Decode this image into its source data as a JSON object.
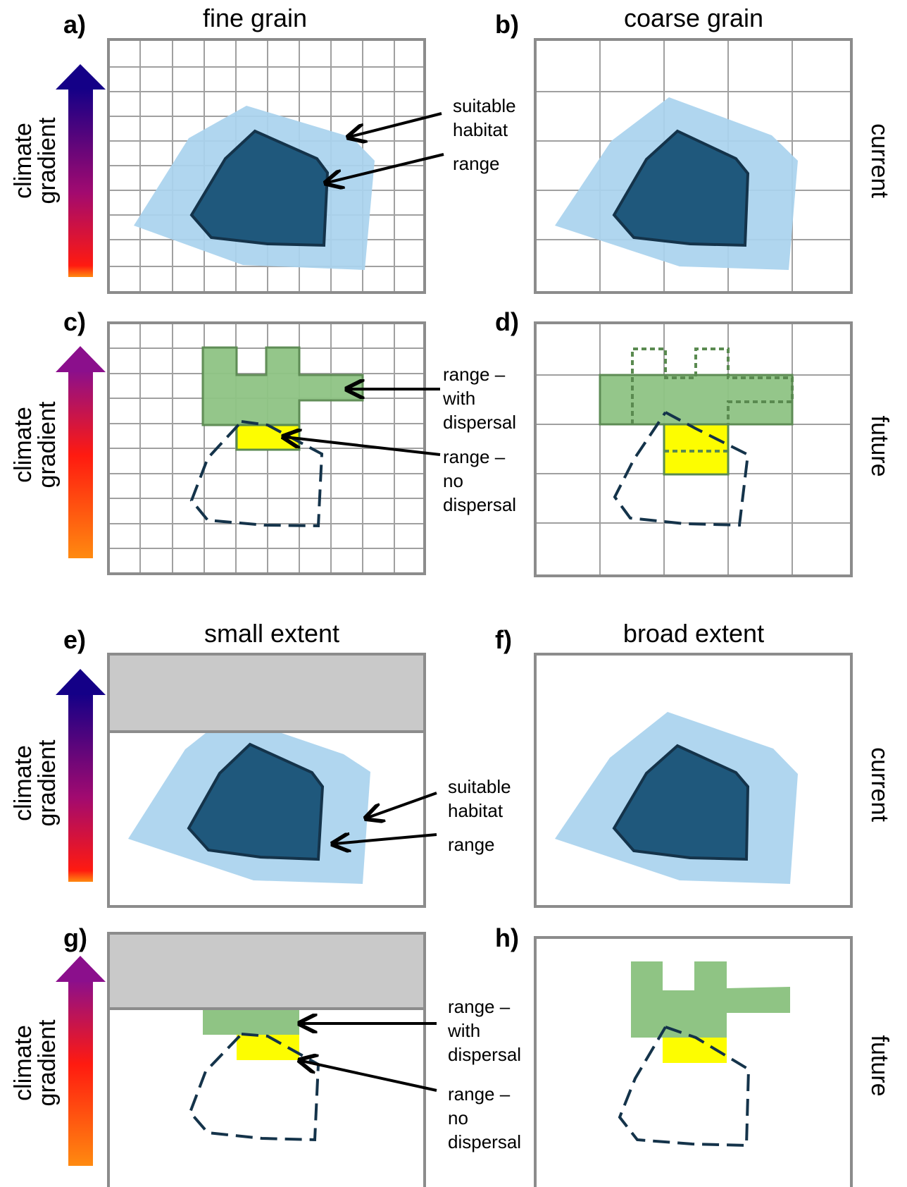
{
  "panels": {
    "a": "a)",
    "b": "b)",
    "c": "c)",
    "d": "d)",
    "e": "e)",
    "f": "f)",
    "g": "g)",
    "h": "h)"
  },
  "column_titles": {
    "fine_grain": "fine grain",
    "coarse_grain": "coarse grain",
    "small_extent": "small extent",
    "broad_extent": "broad extent"
  },
  "row_labels": {
    "current": "current",
    "future": "future"
  },
  "axis": {
    "line1": "climate",
    "line2": "gradient"
  },
  "annotations": {
    "suitable_habitat": [
      "suitable",
      "habitat"
    ],
    "range": "range",
    "range_with_dispersal": [
      "range –",
      "with",
      "dispersal"
    ],
    "range_no_dispersal": [
      "range –",
      "no",
      "dispersal"
    ]
  },
  "colors": {
    "suitable_habitat": "#a9d3ee",
    "range": "#1f587c",
    "range_outline": "#14334a",
    "range_with_dispersal": "#8fc484",
    "range_with_dispersal_outline": "#5a8a50",
    "range_no_dispersal": "#fdfd00",
    "excluded_area": "#c9c9c9",
    "grid": "#a0a0a0",
    "panel_frame": "#8c8c8c",
    "gradient_warm": "#ff8a10",
    "gradient_mid": "#ff1a10",
    "gradient_purple": "#8b0f8c",
    "gradient_cold": "#140087"
  }
}
